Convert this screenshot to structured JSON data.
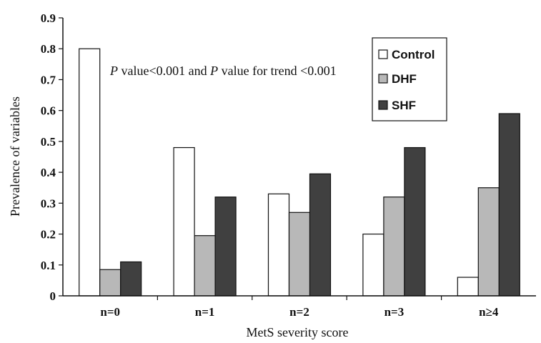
{
  "chart_data": {
    "type": "bar",
    "categories": [
      "n=0",
      "n=1",
      "n=2",
      "n=3",
      "n≥4"
    ],
    "series": [
      {
        "name": "Control",
        "values": [
          0.8,
          0.48,
          0.33,
          0.2,
          0.06
        ],
        "color": "#ffffff"
      },
      {
        "name": "DHF",
        "values": [
          0.085,
          0.195,
          0.27,
          0.32,
          0.35
        ],
        "color": "#b8b8b8"
      },
      {
        "name": "SHF",
        "values": [
          0.11,
          0.32,
          0.395,
          0.48,
          0.59
        ],
        "color": "#404040"
      }
    ],
    "y_ticks": [
      "0",
      "0.1",
      "0.2",
      "0.3",
      "0.4",
      "0.5",
      "0.6",
      "0.7",
      "0.8",
      "0.9"
    ],
    "ylim": [
      0,
      0.9
    ],
    "xlabel": "MetS severity score",
    "ylabel": "Prevalence of variables",
    "annotation": {
      "p1": "P",
      "t1": " value<0.001 and ",
      "p2": "P",
      "t2": " value for trend <0.001"
    },
    "legend_position": "top-right",
    "grid": false
  }
}
